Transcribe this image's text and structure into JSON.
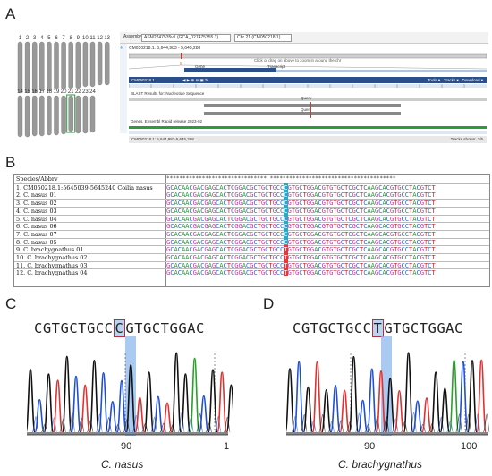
{
  "panels": {
    "a": "A",
    "b": "B",
    "c": "C",
    "d": "D"
  },
  "chromosomes": {
    "top_row": [
      "1",
      "2",
      "3",
      "4",
      "5",
      "6",
      "7",
      "8",
      "9",
      "10",
      "11",
      "12",
      "13"
    ],
    "bottom_row": [
      "14",
      "15",
      "16",
      "17",
      "18",
      "19",
      "20",
      "21",
      "22",
      "23",
      "24"
    ],
    "highlighted": "21",
    "highlight_color": "#2f9a3a"
  },
  "ensembl": {
    "assembly_label": "Assembly:",
    "assembly_value": "ASM2747535v1 (GCA_027475355.1)",
    "chromosome": "Chr 21 (CM050218.1)",
    "location": "CM050218.1: 5,644,983 - 5,645,288",
    "overview_caption": "Click or drag on above to zoom in around the chr",
    "gene_label": "Gene",
    "transcript_label": "Transcript",
    "region_label": "CM050218.1",
    "blast_header": "BLAST Results for: Nucleotide Sequence",
    "query_label": "Query",
    "genes_header": "Genes, Ensembl Rapid release 2023-02",
    "footer_location": "CM050218.1: 5,644,983-5,645,288",
    "tracks_shown": "Tracks shown: 2/6",
    "tools": "Tools",
    "tracks": "Tracks",
    "download": "Download",
    "coords": [
      "5,644,4",
      "5,644,960",
      "5,645,000",
      "5,645,020",
      "5,645,040",
      "5,645,060",
      "5,645,080",
      "5,645,100",
      "5,645,120",
      "5,645,140",
      "5,645,160",
      "5,645,180",
      "5,645,200",
      "5,645,220",
      "5,645,240",
      "5,645,260"
    ]
  },
  "alignment": {
    "header_label": "Species/Abbrv",
    "rows": [
      {
        "name": "1. CM050218.1:5645039-5645240 Coilia nasus",
        "left": "GCACAACGACGAGCACTCGGACGCTGCTGCC",
        "snp": "C",
        "right": "GTGCTGGACGTGTGCTCGCTCAAGCACGTGCCTACGTCT",
        "type": "C"
      },
      {
        "name": "2. C. nasus 01",
        "left": "GCACAACGACGAGCACTCGGACGCTGCTGCC",
        "snp": "C",
        "right": "GTGCTGGACGTGTGCTCGCTCAAGCACGTGCCTACGTCT",
        "type": "C"
      },
      {
        "name": "3. C. nasus 02",
        "left": "GCACAACGACGAGCACTCGGACGCTGCTGCC",
        "snp": "C",
        "right": "GTGCTGGACGTGTGCTCGCTCAAGCACGTGCCTACGTCT",
        "type": "C"
      },
      {
        "name": "4. C. nasus 03",
        "left": "GCACAACGACGAGCACTCGGACGCTGCTGCC",
        "snp": "C",
        "right": "GTGCTGGACGTGTGCTCGCTCAAGCACGTGCCTACGTCT",
        "type": "C"
      },
      {
        "name": "5. C. nasus 04",
        "left": "GCACAACGACGAGCACTCGGACGCTGCTGCC",
        "snp": "C",
        "right": "GTGCTGGACGTGTGCTCGCTCAAGCACGTGCCTACGTCT",
        "type": "C"
      },
      {
        "name": "6. C. nasus 06",
        "left": "GCACAACGACGAGCACTCGGACGCTGCTGCC",
        "snp": "C",
        "right": "GTGCTGGACGTGTGCTCGCTCAAGCACGTGCCTACGTCT",
        "type": "C"
      },
      {
        "name": "7. C. nasus 07",
        "left": "GCACAACGACGAGCACTCGGACGCTGCTGCC",
        "snp": "C",
        "right": "GTGCTGGACGTGTGCTCGCTCAAGCACGTGCCTACGTCT",
        "type": "C"
      },
      {
        "name": "8. C. nasus 05",
        "left": "GCACAACGACGAGCACTCGGACGCTGCTGCC",
        "snp": "C",
        "right": "GTGCTGGACGTGTGCTCGCTCAAGCACGTGCCTACGTCT",
        "type": "C"
      },
      {
        "name": "9. C. brachygnathus 01",
        "left": "GCACAACGACGAGCACTCGGACGCTGCTGCC",
        "snp": "T",
        "right": "GTGCTGGACGTGTGCTCGCTCAAGCACGTGCCTACGTCT",
        "type": "T"
      },
      {
        "name": "10. C. brachygnathus 02",
        "left": "GCACAACGACGAGCACTCGGACGCTGCTGCC",
        "snp": "T",
        "right": "GTGCTGGACGTGTGCTCGCTCAAGCACGTGCCTACGTCT",
        "type": "T"
      },
      {
        "name": "11. C. brachygnathus 03",
        "left": "GCACAACGACGAGCACTCGGACGCTGCTGCC",
        "snp": "T",
        "right": "GTGCTGGACGTGTGCTCGCTCAAGCACGTGCCTACGTCT",
        "type": "T"
      },
      {
        "name": "12. C. brachygnathus 04",
        "left": "GCACAACGACGAGCACTCGGACGCTGCTGCC",
        "snp": "T",
        "right": "GTGCTGGACGTGTGCTCGCTCAAGCACGTGCCTACGTCT",
        "type": "T"
      }
    ],
    "colors": {
      "A": "#2a9a3a",
      "C": "#2a5fc0",
      "G": "#c03aa0",
      "T": "#c02a2a",
      "snp_c_bg": "#2aa8c8",
      "snp_t_bg": "#e03a3a"
    }
  },
  "chromatogram_c": {
    "seq_left": "CGTGCTGCC",
    "snp": "C",
    "seq_right": "GTGCTGGAC",
    "caption": "C. nasus",
    "ticks": [
      "90",
      "1"
    ]
  },
  "chromatogram_d": {
    "seq_left": "CGTGCTGCC",
    "snp": "T",
    "seq_right": "GTGCTGGAC",
    "caption": "C. brachygnathus",
    "ticks": [
      "90",
      "100"
    ]
  }
}
